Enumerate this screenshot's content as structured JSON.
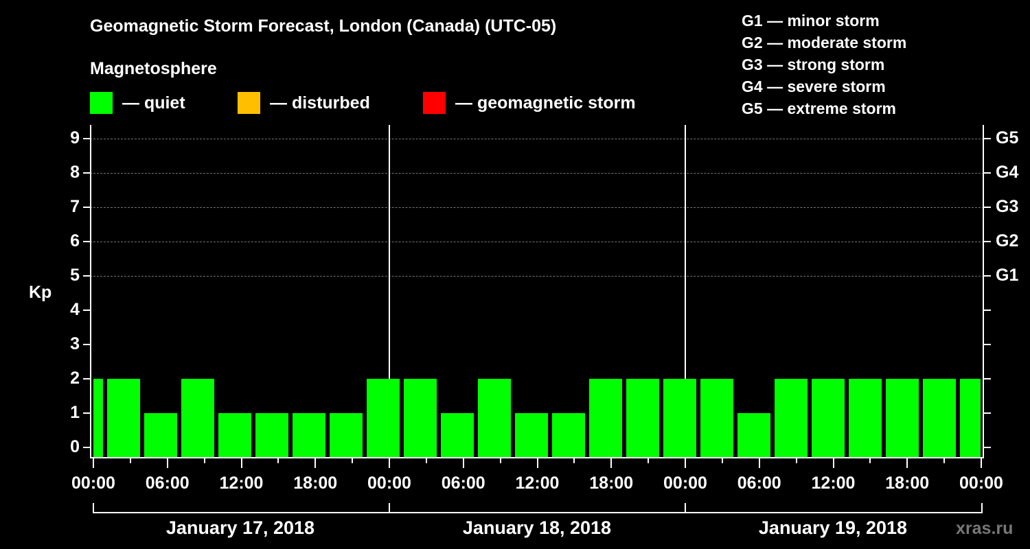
{
  "header": {
    "title": "Geomagnetic Storm Forecast, London (Canada) (UTC-05)",
    "subtitle": "Magnetosphere"
  },
  "legend": [
    {
      "label": "— quiet",
      "color": "#00ff00"
    },
    {
      "label": "— disturbed",
      "color": "#ffbf00"
    },
    {
      "label": "— geomagnetic storm",
      "color": "#ff0000"
    }
  ],
  "g_legend": [
    "G1 — minor storm",
    "G2 — moderate storm",
    "G3 — strong storm",
    "G4 — severe storm",
    "G5 — extreme storm"
  ],
  "watermark": "xras.ru",
  "chart_data": {
    "type": "bar",
    "title": "Geomagnetic Storm Forecast, London (Canada) (UTC-05)",
    "xlabel": "",
    "ylabel": "Kp",
    "ylim": [
      0,
      9
    ],
    "yticks": [
      0,
      1,
      2,
      3,
      4,
      5,
      6,
      7,
      8,
      9
    ],
    "right_axis_labels": {
      "5": "G1",
      "6": "G2",
      "7": "G3",
      "8": "G4",
      "9": "G5"
    },
    "grid": "dashed horizontal at Kp 5-9",
    "x_tick_labels": [
      "00:00",
      "06:00",
      "12:00",
      "18:00",
      "00:00",
      "06:00",
      "12:00",
      "18:00",
      "00:00",
      "06:00",
      "12:00",
      "18:00",
      "00:00"
    ],
    "days": [
      "January 17, 2018",
      "January 18, 2018",
      "January 19, 2018"
    ],
    "categories": [
      "Jan17 00-01",
      "Jan17 01-04",
      "Jan17 04-07",
      "Jan17 07-10",
      "Jan17 10-13",
      "Jan17 13-16",
      "Jan17 16-19",
      "Jan17 19-22",
      "Jan17 22-01",
      "Jan18 01-04",
      "Jan18 04-07",
      "Jan18 07-10",
      "Jan18 10-13",
      "Jan18 13-16",
      "Jan18 16-19",
      "Jan18 19-22",
      "Jan18 22-01",
      "Jan19 01-04",
      "Jan19 04-07",
      "Jan19 07-10",
      "Jan19 10-13",
      "Jan19 13-16",
      "Jan19 16-19",
      "Jan19 19-22",
      "Jan19 22-24"
    ],
    "values": [
      2,
      2,
      1,
      2,
      1,
      1,
      1,
      1,
      2,
      2,
      1,
      2,
      1,
      1,
      2,
      2,
      2,
      2,
      1,
      2,
      2,
      2,
      2,
      2,
      2
    ],
    "bar_colors": "all quiet (#00ff00)"
  }
}
